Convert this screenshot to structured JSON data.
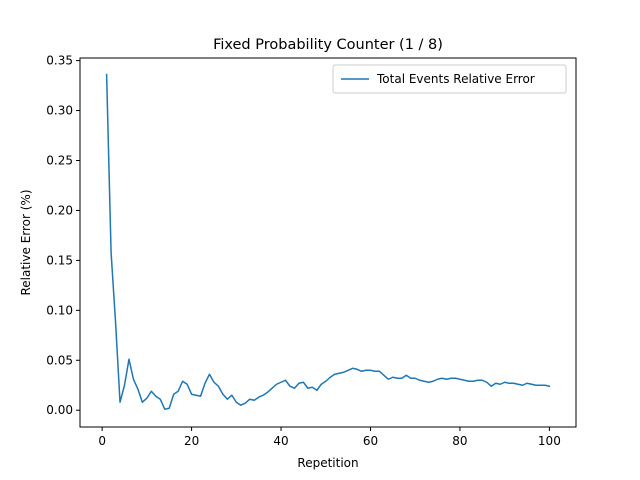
{
  "chart_data": {
    "type": "line",
    "title": "Fixed Probability Counter (1 / 8)",
    "xlabel": "Repetition",
    "ylabel": "Relative Error (%)",
    "xlim": [
      -4.95,
      105.95
    ],
    "ylim": [
      -0.0168,
      0.3526
    ],
    "xticks": [
      0,
      20,
      40,
      60,
      80,
      100
    ],
    "yticks": [
      0.0,
      0.05,
      0.1,
      0.15,
      0.2,
      0.25,
      0.3,
      0.35
    ],
    "ytick_labels": [
      "0.00",
      "0.05",
      "0.10",
      "0.15",
      "0.20",
      "0.25",
      "0.30",
      "0.35"
    ],
    "legend_position": "upper-right",
    "series": [
      {
        "name": "Total Events Relative Error",
        "color": "#1f77b4",
        "x": [
          1,
          2,
          3,
          4,
          5,
          6,
          7,
          8,
          9,
          10,
          11,
          12,
          13,
          14,
          15,
          16,
          17,
          18,
          19,
          20,
          21,
          22,
          23,
          24,
          25,
          26,
          27,
          28,
          29,
          30,
          31,
          32,
          33,
          34,
          35,
          36,
          37,
          38,
          39,
          40,
          41,
          42,
          43,
          44,
          45,
          46,
          47,
          48,
          49,
          50,
          51,
          52,
          53,
          54,
          55,
          56,
          57,
          58,
          59,
          60,
          61,
          62,
          63,
          64,
          65,
          66,
          67,
          68,
          69,
          70,
          71,
          72,
          73,
          74,
          75,
          76,
          77,
          78,
          79,
          80,
          81,
          82,
          83,
          84,
          85,
          86,
          87,
          88,
          89,
          90,
          91,
          92,
          93,
          94,
          95,
          96,
          97,
          98,
          99,
          100
        ],
        "y": [
          0.336,
          0.158,
          0.088,
          0.008,
          0.025,
          0.051,
          0.031,
          0.021,
          0.008,
          0.012,
          0.019,
          0.014,
          0.011,
          0.001,
          0.002,
          0.016,
          0.019,
          0.029,
          0.026,
          0.016,
          0.015,
          0.014,
          0.027,
          0.036,
          0.028,
          0.024,
          0.016,
          0.011,
          0.015,
          0.008,
          0.005,
          0.007,
          0.011,
          0.01,
          0.013,
          0.015,
          0.018,
          0.022,
          0.026,
          0.028,
          0.03,
          0.024,
          0.022,
          0.027,
          0.028,
          0.022,
          0.023,
          0.02,
          0.026,
          0.029,
          0.033,
          0.036,
          0.037,
          0.038,
          0.04,
          0.042,
          0.041,
          0.039,
          0.04,
          0.04,
          0.039,
          0.039,
          0.035,
          0.031,
          0.033,
          0.032,
          0.032,
          0.035,
          0.032,
          0.032,
          0.03,
          0.029,
          0.028,
          0.029,
          0.031,
          0.032,
          0.031,
          0.032,
          0.032,
          0.031,
          0.03,
          0.029,
          0.029,
          0.03,
          0.03,
          0.028,
          0.024,
          0.027,
          0.026,
          0.028,
          0.027,
          0.027,
          0.026,
          0.025,
          0.027,
          0.026,
          0.025,
          0.025,
          0.025,
          0.024
        ]
      }
    ]
  }
}
